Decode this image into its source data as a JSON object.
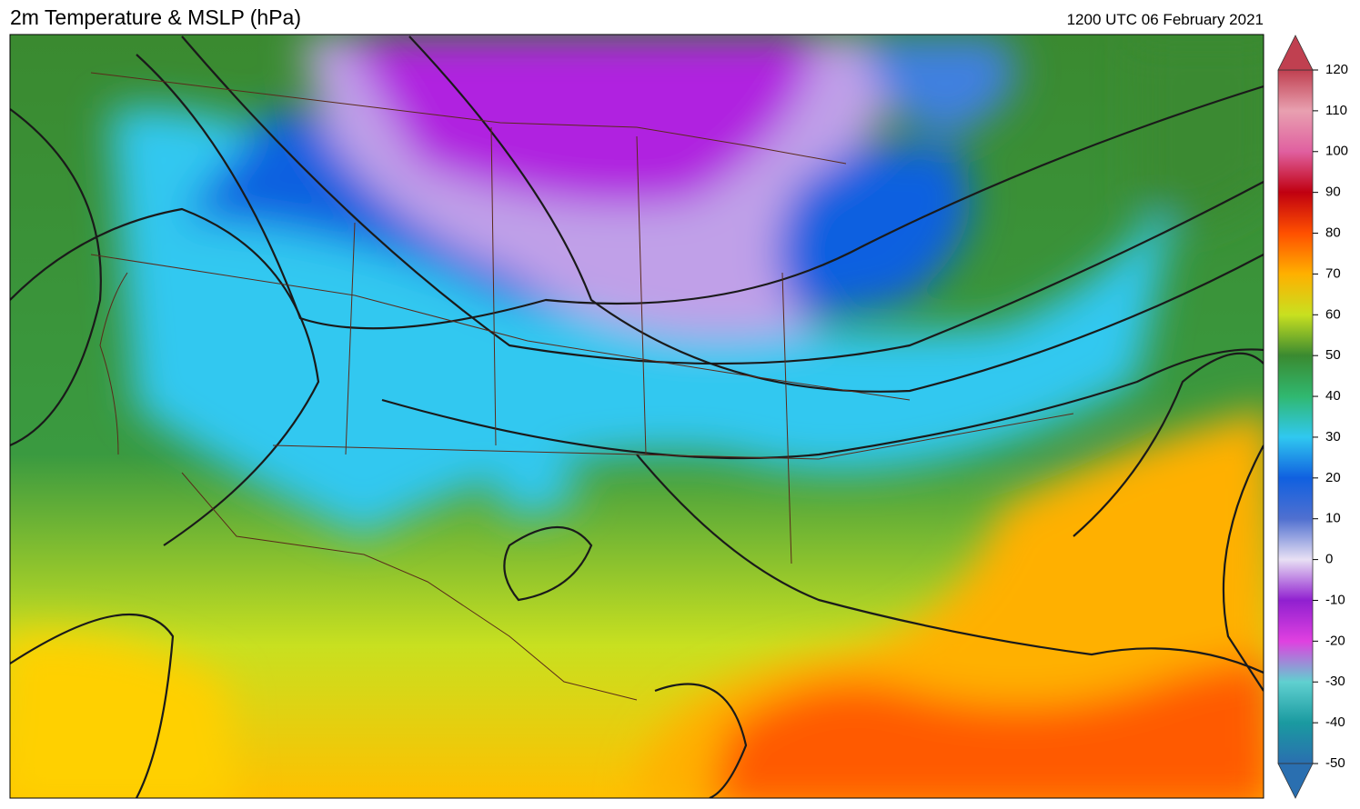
{
  "header": {
    "title": "2m Temperature & MSLP (hPa)",
    "valid_time": "1200 UTC 06 February 2021"
  },
  "colorbar": {
    "lim": [
      -50,
      120
    ],
    "ticks": [
      -50,
      -40,
      -30,
      -20,
      -10,
      0,
      10,
      20,
      30,
      40,
      50,
      60,
      70,
      80,
      90,
      100,
      110,
      120
    ],
    "colors": [
      "#2a6fb0",
      "#1a9aa0",
      "#60d0d0",
      "#e040e0",
      "#9020d0",
      "#e8e0f4",
      "#5070d0",
      "#1060e0",
      "#30c8f0",
      "#30b870",
      "#3a8a30",
      "#c8e020",
      "#ffb000",
      "#ff5000",
      "#c00010",
      "#e060a0",
      "#e8a0b0",
      "#c04050"
    ]
  }
}
